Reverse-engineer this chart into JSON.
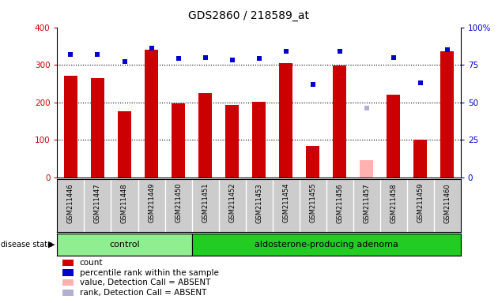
{
  "title": "GDS2860 / 218589_at",
  "samples": [
    "GSM211446",
    "GSM211447",
    "GSM211448",
    "GSM211449",
    "GSM211450",
    "GSM211451",
    "GSM211452",
    "GSM211453",
    "GSM211454",
    "GSM211455",
    "GSM211456",
    "GSM211457",
    "GSM211458",
    "GSM211459",
    "GSM211460"
  ],
  "bar_values": [
    270,
    265,
    175,
    340,
    198,
    225,
    193,
    202,
    305,
    83,
    298,
    null,
    220,
    100,
    335
  ],
  "bar_absent_values": [
    null,
    null,
    null,
    null,
    null,
    null,
    null,
    null,
    null,
    null,
    null,
    45,
    null,
    null,
    null
  ],
  "percentile_values": [
    82,
    82,
    77,
    86,
    79,
    80,
    78,
    79,
    84,
    62,
    84,
    null,
    80,
    63,
    85
  ],
  "percentile_absent_values": [
    null,
    null,
    null,
    null,
    null,
    null,
    null,
    null,
    null,
    null,
    null,
    46,
    null,
    null,
    null
  ],
  "bar_color": "#cc0000",
  "bar_absent_color": "#ffb0b0",
  "dot_color": "#0000cc",
  "dot_absent_color": "#b0b0d0",
  "control_indices": [
    0,
    1,
    2,
    3,
    4
  ],
  "adenoma_indices": [
    5,
    6,
    7,
    8,
    9,
    10,
    11,
    12,
    13,
    14
  ],
  "control_label": "control",
  "adenoma_label": "aldosterone-producing adenoma",
  "disease_state_label": "disease state",
  "ylim_left": [
    0,
    400
  ],
  "ylim_right": [
    0,
    100
  ],
  "yticks_left": [
    0,
    100,
    200,
    300,
    400
  ],
  "yticks_right": [
    0,
    25,
    50,
    75,
    100
  ],
  "grid_values": [
    100,
    200,
    300
  ],
  "legend_items": [
    "count",
    "percentile rank within the sample",
    "value, Detection Call = ABSENT",
    "rank, Detection Call = ABSENT"
  ],
  "legend_colors": [
    "#cc0000",
    "#0000cc",
    "#ffb0b0",
    "#b0b0d0"
  ],
  "label_area_color": "#cccccc",
  "control_bg": "#90ee90",
  "adenoma_bg": "#22cc22"
}
